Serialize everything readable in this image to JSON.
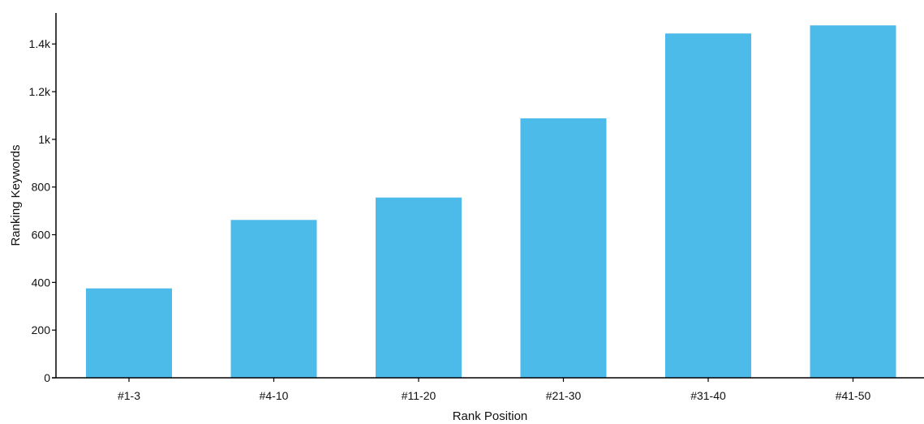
{
  "chart_data": {
    "type": "bar",
    "categories": [
      "#1-3",
      "#4-10",
      "#11-20",
      "#21-30",
      "#31-40",
      "#41-50"
    ],
    "values": [
      375,
      662,
      756,
      1088,
      1444,
      1478
    ],
    "xlabel": "Rank Position",
    "ylabel": "Ranking Keywords",
    "ylim": [
      0,
      1530
    ],
    "yticks": [
      0,
      200,
      400,
      600,
      800,
      1000,
      1200,
      1400
    ],
    "ytick_labels": [
      "0",
      "200",
      "400",
      "600",
      "800",
      "1k",
      "1.2k",
      "1.4k"
    ],
    "bar_color": "#4dbbea",
    "grid": false,
    "legend": "none"
  }
}
